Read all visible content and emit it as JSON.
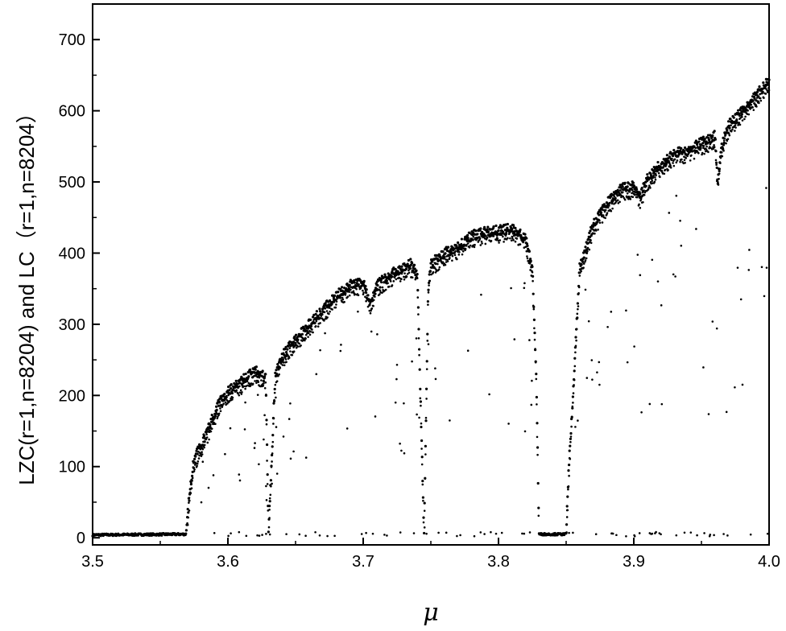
{
  "chart_data": {
    "type": "scatter",
    "title": "",
    "xlabel": "μ",
    "ylabel": "LZC(r=1,n=8204) and LC（r=1,n=8204）",
    "xlim": [
      3.5,
      4.0
    ],
    "ylim": [
      -10,
      750
    ],
    "xticks": [
      3.5,
      3.6,
      3.7,
      3.8,
      3.9,
      4.0
    ],
    "xtick_labels": [
      "3.5",
      "3.6",
      "3.7",
      "3.8",
      "3.9",
      "4.0"
    ],
    "yticks": [
      0,
      100,
      200,
      300,
      400,
      500,
      600,
      700
    ],
    "ytick_labels": [
      "0",
      "100",
      "200",
      "300",
      "400",
      "500",
      "600",
      "700"
    ],
    "grid": false,
    "legend": "none",
    "marker_color": "#000000",
    "main_curve": {
      "x": [
        3.5,
        3.569,
        3.572,
        3.575,
        3.58,
        3.585,
        3.59,
        3.595,
        3.6,
        3.61,
        3.62,
        3.628,
        3.63,
        3.635,
        3.64,
        3.65,
        3.66,
        3.67,
        3.68,
        3.69,
        3.7,
        3.705,
        3.71,
        3.72,
        3.73,
        3.735,
        3.74,
        3.745,
        3.748,
        3.75,
        3.76,
        3.77,
        3.78,
        3.79,
        3.8,
        3.81,
        3.82,
        3.825,
        3.828,
        3.83,
        3.85,
        3.852,
        3.855,
        3.86,
        3.87,
        3.88,
        3.89,
        3.9,
        3.905,
        3.91,
        3.92,
        3.93,
        3.94,
        3.95,
        3.96,
        3.962,
        3.965,
        3.97,
        3.98,
        3.99,
        4.0
      ],
      "y": [
        4,
        5,
        70,
        110,
        130,
        150,
        175,
        195,
        205,
        220,
        235,
        225,
        8,
        230,
        255,
        280,
        300,
        320,
        340,
        355,
        360,
        330,
        355,
        370,
        380,
        385,
        370,
        5,
        350,
        385,
        400,
        410,
        425,
        430,
        432,
        435,
        420,
        380,
        220,
        5,
        5,
        100,
        200,
        380,
        440,
        470,
        490,
        495,
        480,
        505,
        525,
        540,
        545,
        555,
        565,
        500,
        550,
        580,
        600,
        620,
        645
      ]
    },
    "annotations": []
  }
}
